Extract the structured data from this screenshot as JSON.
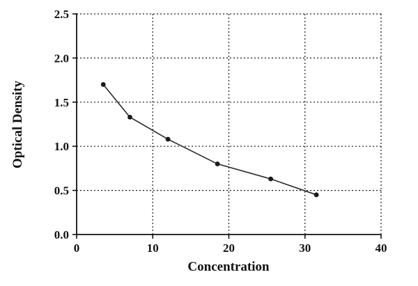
{
  "chart_data": {
    "type": "line",
    "title": "",
    "xlabel": "Concentration",
    "ylabel": "Optical Density",
    "x": [
      3.5,
      7,
      12,
      18.5,
      25.5,
      31.5
    ],
    "y": [
      1.7,
      1.33,
      1.08,
      0.8,
      0.63,
      0.45
    ],
    "xlim": [
      0,
      40
    ],
    "ylim": [
      0,
      2.5
    ],
    "xticks": [
      0,
      10,
      20,
      30,
      40
    ],
    "yticks": [
      0,
      0.5,
      1,
      1.5,
      2,
      2.5
    ],
    "xtick_labels": [
      "0",
      "10",
      "20",
      "30",
      "40"
    ],
    "ytick_labels": [
      "0.0",
      "0.5",
      "1.0",
      "1.5",
      "2.0",
      "2.5"
    ],
    "grid": "dashed",
    "legend": "none",
    "marker": "circle",
    "line_color": "#2a2a2a",
    "marker_color": "#1a1a1a",
    "background_color": "#ffffff"
  }
}
